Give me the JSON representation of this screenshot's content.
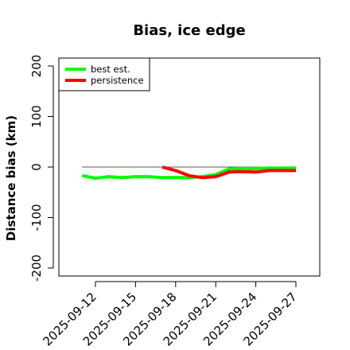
{
  "chart_data": {
    "type": "line",
    "title": "Bias, ice edge",
    "xlabel": "",
    "ylabel": "Distance bias (km)",
    "ylim": [
      -215,
      215
    ],
    "yticks": [
      -200,
      -100,
      0,
      100,
      200
    ],
    "xticks": [
      "2025-09-12",
      "2025-09-15",
      "2025-09-18",
      "2025-09-21",
      "2025-09-24",
      "2025-09-27"
    ],
    "reference_line": 0,
    "legend": {
      "placement": "top-left"
    },
    "series": [
      {
        "name": "best est.",
        "color": "#00ff00",
        "x": [
          "2025-09-11",
          "2025-09-12",
          "2025-09-13",
          "2025-09-14",
          "2025-09-15",
          "2025-09-16",
          "2025-09-17",
          "2025-09-18",
          "2025-09-19",
          "2025-09-20",
          "2025-09-21",
          "2025-09-22",
          "2025-09-23",
          "2025-09-24",
          "2025-09-25",
          "2025-09-26",
          "2025-09-27"
        ],
        "values": [
          -17,
          -22,
          -19,
          -21,
          -19,
          -19,
          -21,
          -21,
          -21,
          -19,
          -15,
          -4,
          -3,
          -3,
          -2,
          -2,
          -2
        ]
      },
      {
        "name": "persistence",
        "color": "#ff0000",
        "x": [
          "2025-09-17",
          "2025-09-18",
          "2025-09-19",
          "2025-09-20",
          "2025-09-21",
          "2025-09-22",
          "2025-09-23",
          "2025-09-24",
          "2025-09-25",
          "2025-09-26",
          "2025-09-27"
        ],
        "values": [
          0,
          -7,
          -17,
          -21,
          -19,
          -10,
          -9,
          -10,
          -7,
          -7,
          -7
        ]
      }
    ]
  }
}
